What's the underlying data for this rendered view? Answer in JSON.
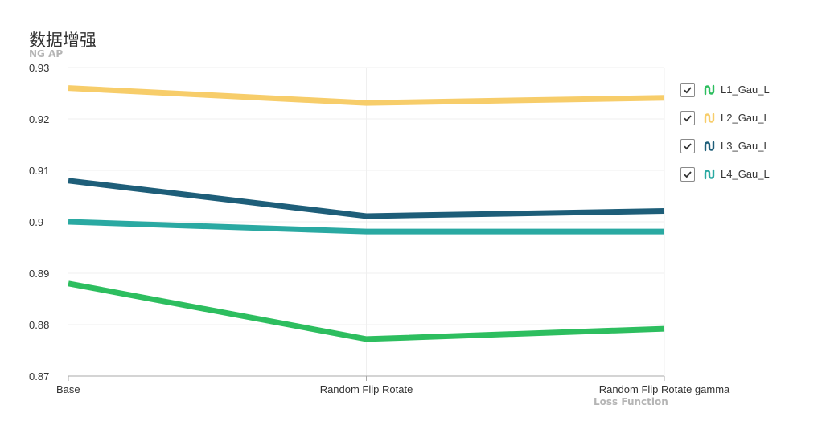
{
  "chart_data": {
    "type": "line",
    "title": "数据增强",
    "ylabel": "NG AP",
    "xlabel": "Loss Function",
    "categories": [
      "Base",
      "Random Flip Rotate",
      "Random Flip Rotate gamma"
    ],
    "ylim": [
      0.87,
      0.93
    ],
    "yticks": [
      "0.93",
      "0.92",
      "0.91",
      "0.9",
      "0.89",
      "0.88",
      "0.87"
    ],
    "grid": true,
    "legend_position": "right",
    "series": [
      {
        "name": "L1_Gau_L",
        "color": "#2dbe5f",
        "values": [
          0.888,
          0.8772,
          0.8792
        ]
      },
      {
        "name": "L2_Gau_L",
        "color": "#f7cd6a",
        "values": [
          0.926,
          0.9231,
          0.9241
        ]
      },
      {
        "name": "L3_Gau_L",
        "color": "#1e5e79",
        "values": [
          0.908,
          0.9011,
          0.9021
        ]
      },
      {
        "name": "L4_Gau_L",
        "color": "#2aa9a2",
        "values": [
          0.9,
          0.8981,
          0.8981
        ]
      }
    ]
  }
}
